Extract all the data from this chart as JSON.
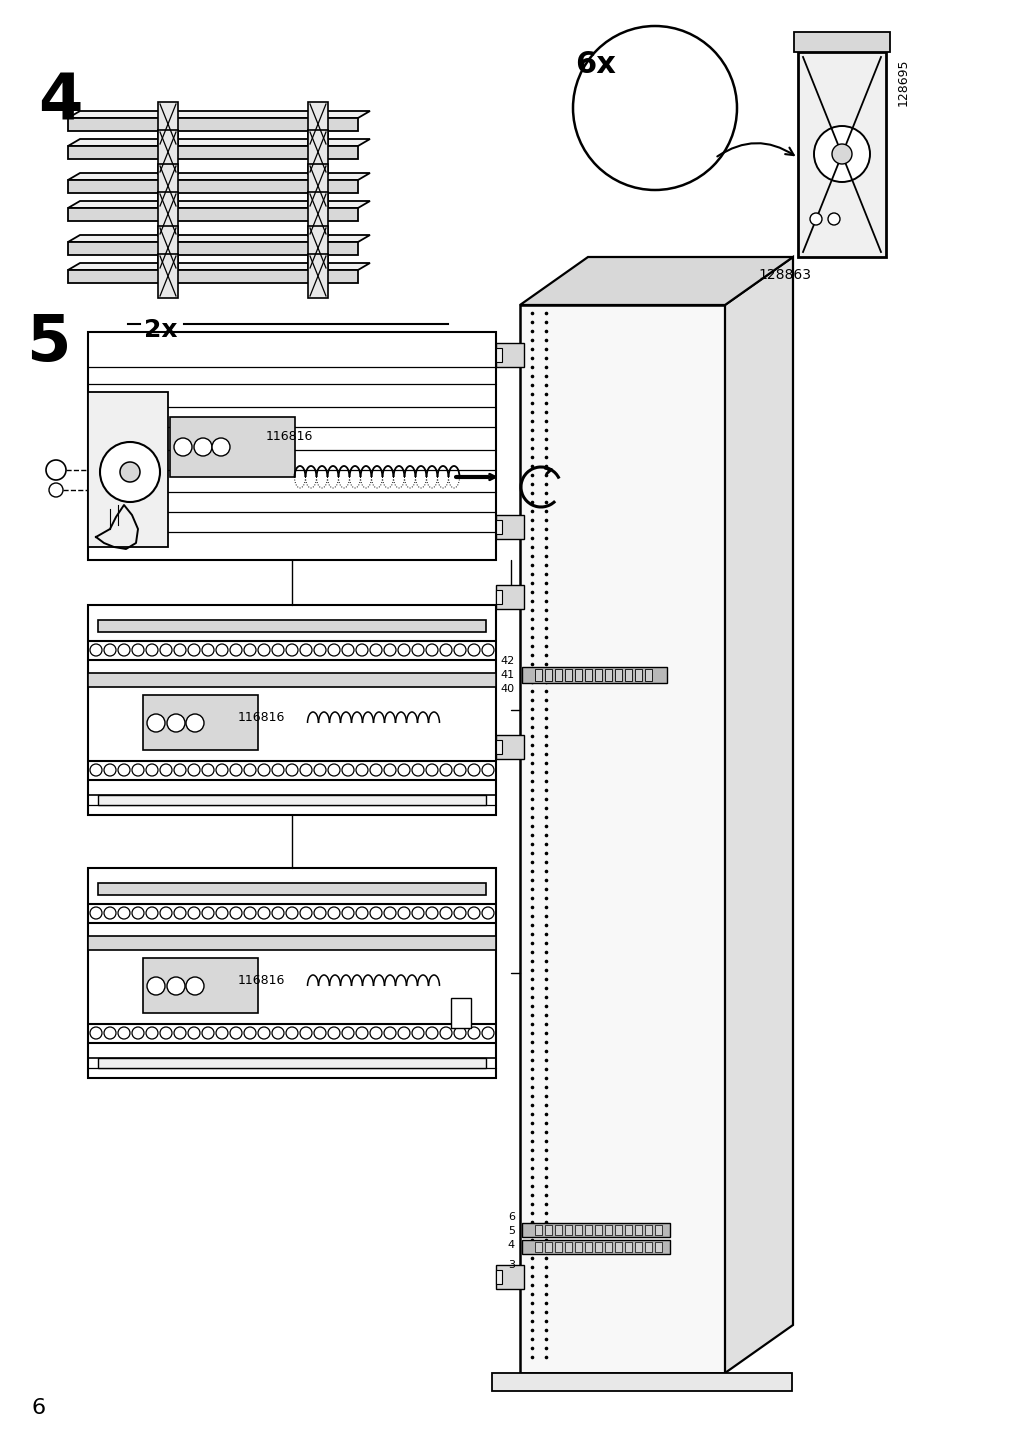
{
  "page_number": "6",
  "step4_label": "4",
  "step5_label": "5",
  "qty_6x": "6x",
  "qty_2x": "2x",
  "part_128863": "128863",
  "part_128695": "128695",
  "part_116816": "116816",
  "nums_42_41_40": [
    "42",
    "41",
    "40"
  ],
  "nums_6_5_4_3": [
    "6",
    "5",
    "4",
    "3"
  ],
  "bg": "#ffffff",
  "lc": "#000000",
  "fill_light": "#f0f0f0",
  "fill_med": "#d8d8d8",
  "fill_dark": "#aaaaaa"
}
